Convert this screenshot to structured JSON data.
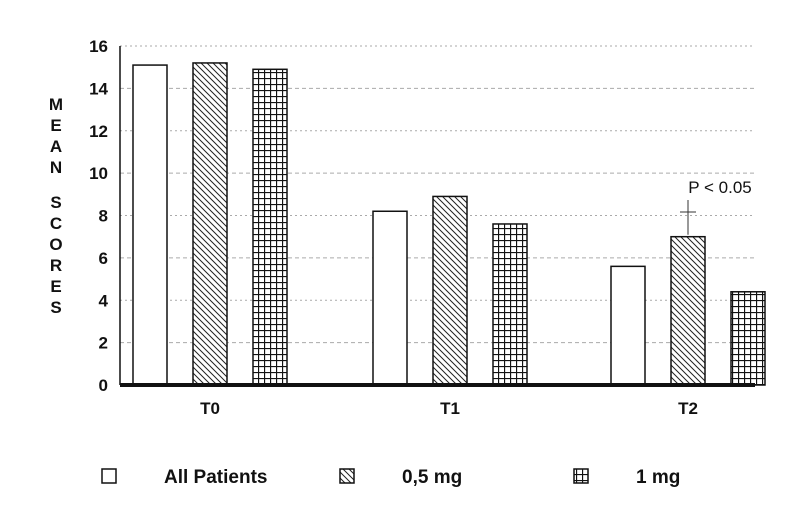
{
  "chart_data": {
    "type": "bar",
    "categories": [
      "T0",
      "T1",
      "T2"
    ],
    "series": [
      {
        "name": "All Patients",
        "values": [
          15.1,
          8.2,
          5.6
        ]
      },
      {
        "name": "0,5 mg",
        "values": [
          15.2,
          8.9,
          7.0
        ]
      },
      {
        "name": "1 mg",
        "values": [
          14.9,
          7.6,
          4.4
        ]
      }
    ],
    "ylim": [
      0,
      16
    ],
    "yticks": [
      "0",
      "2",
      "4",
      "6",
      "8",
      "10",
      "12",
      "14",
      "16"
    ],
    "ylabel_words": [
      "MEAN",
      "SCORES"
    ],
    "annotation": "P < 0.05",
    "legend_position": "bottom",
    "grid": true
  }
}
